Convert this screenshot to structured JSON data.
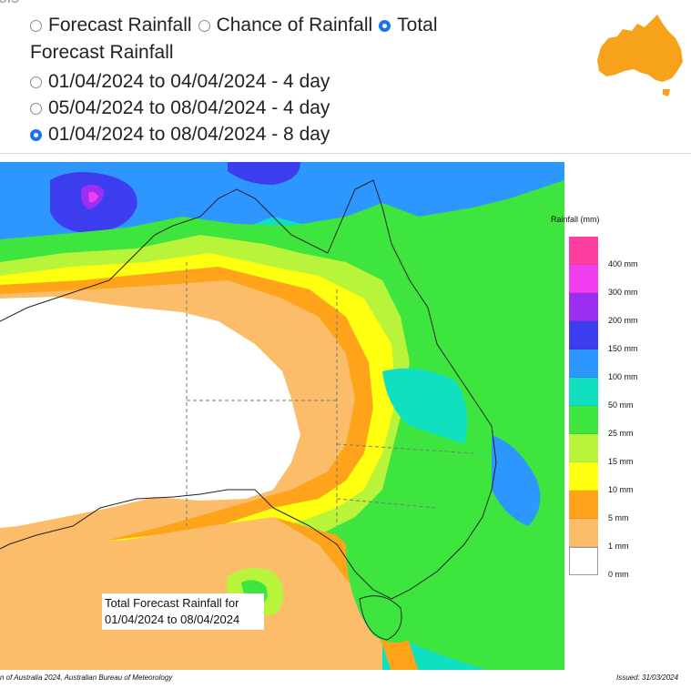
{
  "header": {
    "cut_title": "ols"
  },
  "options": {
    "type_options": [
      {
        "label": "Forecast Rainfall",
        "selected": false
      },
      {
        "label": "Chance of Rainfall",
        "selected": false
      },
      {
        "label": "Total",
        "selected": true
      }
    ],
    "type_continuation": "Forecast Rainfall",
    "period_options": [
      {
        "label": "01/04/2024 to 04/04/2024 - 4 day",
        "selected": false
      },
      {
        "label": "05/04/2024 to 08/04/2024 - 4 day",
        "selected": false
      },
      {
        "label": "01/04/2024 to 08/04/2024 - 8 day",
        "selected": true
      }
    ]
  },
  "map": {
    "legend_title": "Rainfall (mm)",
    "legend": [
      {
        "label": "400 mm",
        "color": "#ff3fa0"
      },
      {
        "label": "300 mm",
        "color": "#f03df0"
      },
      {
        "label": "200 mm",
        "color": "#9b2ef0"
      },
      {
        "label": "150 mm",
        "color": "#3d3df0"
      },
      {
        "label": "100 mm",
        "color": "#2e96ff"
      },
      {
        "label": "50 mm",
        "color": "#10e0c0"
      },
      {
        "label": "25 mm",
        "color": "#3fe53f"
      },
      {
        "label": "15 mm",
        "color": "#b8f53a"
      },
      {
        "label": "10 mm",
        "color": "#ffff10"
      },
      {
        "label": "5 mm",
        "color": "#ffa41a"
      },
      {
        "label": "1 mm",
        "color": "#fcbd6b"
      },
      {
        "label": "0 mm",
        "color": "#ffffff"
      }
    ],
    "caption_line1": "Total Forecast Rainfall for",
    "caption_line2": "01/04/2024 to 08/04/2024",
    "copyright": "n of Australia 2024, Australian Bureau of Meteorology",
    "issued": "Issued: 31/03/2024"
  }
}
